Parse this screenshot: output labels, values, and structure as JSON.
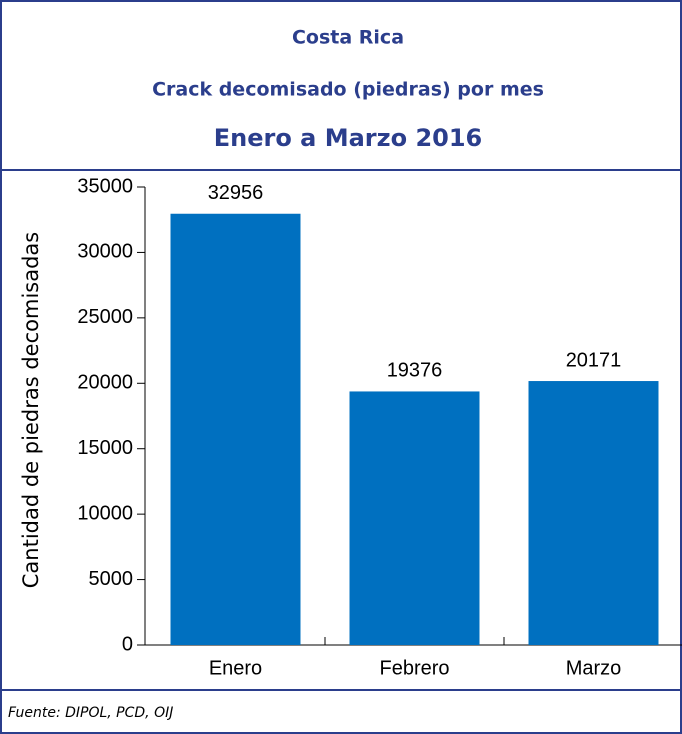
{
  "chart_data": {
    "type": "bar",
    "title_lines": [
      "Costa Rica",
      "Crack decomisado (piedras) por mes",
      "Enero a Marzo 2016"
    ],
    "y_label": "Cantidad de piedras decomisadas",
    "categories": [
      "Enero",
      "Febrero",
      "Marzo"
    ],
    "values": [
      32956,
      19376,
      20171
    ],
    "color": "#0070c0",
    "ylim": [
      0,
      35000
    ],
    "yticks": [
      0,
      5000,
      10000,
      15000,
      20000,
      25000,
      30000,
      35000
    ],
    "grid": false,
    "source": "Fuente: DIPOL, PCD, OIJ"
  }
}
